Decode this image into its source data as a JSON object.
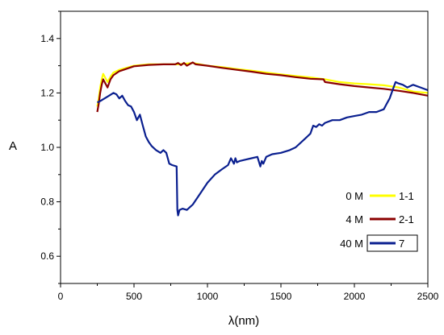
{
  "chart_data": {
    "type": "line",
    "xlabel": "λ(nm)",
    "ylabel": "A",
    "xlim": [
      0,
      2500
    ],
    "ylim": [
      0.5,
      1.5
    ],
    "xticks": [
      0,
      500,
      1000,
      1500,
      2000,
      2500
    ],
    "yticks": [
      0.6,
      0.8,
      1.0,
      1.2,
      1.4
    ],
    "ytick_labels": [
      "0.6",
      "0.8",
      "1.0",
      "1.2",
      "1.4"
    ],
    "grid": false,
    "legend": [
      {
        "prefix": "0 M",
        "name": "1-1",
        "color": "#FFFF00",
        "framed": false
      },
      {
        "prefix": "4 M",
        "name": "2-1",
        "color": "#8B0000",
        "framed": false
      },
      {
        "prefix": "40 M",
        "name": "7",
        "color": "#0A1F8F",
        "framed": true
      }
    ],
    "series": [
      {
        "name": "1-1",
        "color": "#FFFF00",
        "x": [
          250,
          260,
          270,
          280,
          290,
          300,
          320,
          340,
          360,
          400,
          500,
          600,
          700,
          800,
          900,
          1000,
          1100,
          1200,
          1300,
          1400,
          1500,
          1600,
          1700,
          1800,
          1900,
          2000,
          2100,
          2200,
          2300,
          2400,
          2500
        ],
        "y": [
          1.15,
          1.18,
          1.22,
          1.25,
          1.27,
          1.26,
          1.24,
          1.26,
          1.275,
          1.285,
          1.3,
          1.305,
          1.305,
          1.305,
          1.31,
          1.3,
          1.295,
          1.288,
          1.282,
          1.275,
          1.268,
          1.262,
          1.257,
          1.25,
          1.24,
          1.235,
          1.232,
          1.228,
          1.22,
          1.205,
          1.2
        ]
      },
      {
        "name": "2-1",
        "color": "#8B0000",
        "x": [
          250,
          260,
          270,
          280,
          290,
          300,
          320,
          340,
          360,
          400,
          500,
          600,
          700,
          780,
          800,
          820,
          840,
          860,
          900,
          920,
          1000,
          1100,
          1200,
          1300,
          1400,
          1500,
          1600,
          1700,
          1790,
          1800,
          1900,
          2000,
          2100,
          2200,
          2300,
          2400,
          2500
        ],
        "y": [
          1.13,
          1.16,
          1.2,
          1.23,
          1.25,
          1.24,
          1.22,
          1.25,
          1.265,
          1.28,
          1.298,
          1.303,
          1.305,
          1.305,
          1.31,
          1.302,
          1.31,
          1.3,
          1.312,
          1.305,
          1.3,
          1.292,
          1.285,
          1.278,
          1.27,
          1.265,
          1.258,
          1.252,
          1.25,
          1.24,
          1.232,
          1.225,
          1.22,
          1.215,
          1.208,
          1.2,
          1.19
        ]
      },
      {
        "name": "7",
        "color": "#0A1F8F",
        "x": [
          250,
          270,
          300,
          330,
          360,
          380,
          400,
          420,
          440,
          460,
          480,
          500,
          520,
          540,
          560,
          580,
          600,
          620,
          650,
          680,
          700,
          720,
          740,
          760,
          790,
          795,
          800,
          810,
          830,
          860,
          900,
          950,
          1000,
          1050,
          1100,
          1140,
          1160,
          1180,
          1190,
          1200,
          1220,
          1260,
          1300,
          1340,
          1360,
          1370,
          1380,
          1400,
          1440,
          1500,
          1560,
          1600,
          1660,
          1700,
          1720,
          1740,
          1760,
          1780,
          1800,
          1850,
          1900,
          1950,
          2000,
          2050,
          2100,
          2150,
          2200,
          2220,
          2240,
          2260,
          2280,
          2300,
          2330,
          2360,
          2400,
          2450,
          2500
        ],
        "y": [
          1.165,
          1.17,
          1.18,
          1.19,
          1.2,
          1.195,
          1.18,
          1.19,
          1.17,
          1.155,
          1.15,
          1.13,
          1.1,
          1.12,
          1.08,
          1.04,
          1.02,
          1.005,
          0.99,
          0.98,
          0.99,
          0.98,
          0.94,
          0.935,
          0.93,
          0.77,
          0.75,
          0.77,
          0.775,
          0.77,
          0.79,
          0.83,
          0.87,
          0.9,
          0.92,
          0.935,
          0.96,
          0.94,
          0.96,
          0.945,
          0.95,
          0.955,
          0.96,
          0.965,
          0.93,
          0.95,
          0.94,
          0.965,
          0.975,
          0.98,
          0.99,
          1.0,
          1.03,
          1.05,
          1.08,
          1.075,
          1.085,
          1.08,
          1.09,
          1.1,
          1.1,
          1.11,
          1.115,
          1.12,
          1.13,
          1.13,
          1.14,
          1.16,
          1.18,
          1.21,
          1.24,
          1.235,
          1.23,
          1.22,
          1.23,
          1.22,
          1.21
        ]
      }
    ]
  }
}
